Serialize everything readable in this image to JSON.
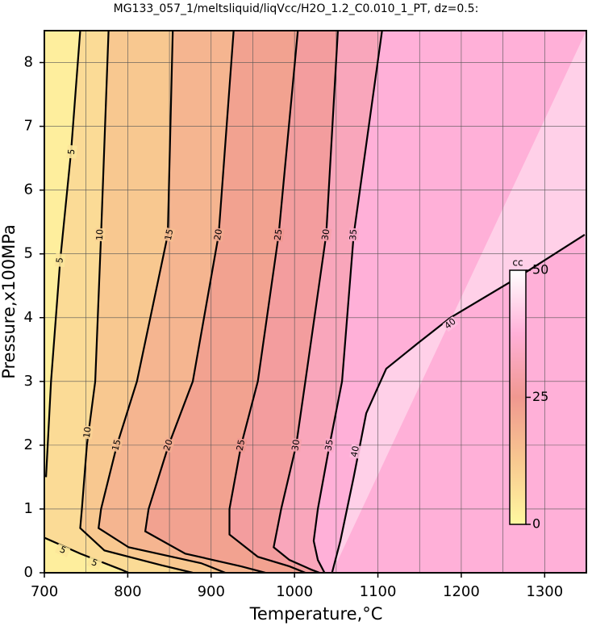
{
  "chart_data": {
    "type": "contour",
    "title": "MG133_057_1/meltsliquid/liqVcc/H2O_1.2_C0.010_1_PT, dz=0.5:",
    "xlabel": "Temperature,°C",
    "ylabel": "Pressure,x100MPa",
    "xlim": [
      700,
      1350
    ],
    "ylim": [
      0,
      8.5
    ],
    "xticks": [
      700,
      800,
      900,
      1000,
      1100,
      1200,
      1300
    ],
    "xminor": [
      750,
      850,
      950,
      1050,
      1150,
      1250,
      1350
    ],
    "yticks": [
      0,
      1,
      2,
      3,
      4,
      5,
      6,
      7,
      8
    ],
    "grid": true,
    "line_color": "#000000",
    "contours": [
      {
        "level": 5,
        "x": [
          743,
          732,
          719,
          708,
          702,
          null,
          700,
          743,
          792,
          801
        ],
        "y": [
          8.5,
          6.6,
          4.9,
          3,
          1.5,
          null,
          0.55,
          0.3,
          0.05,
          0
        ],
        "label_x": [
          733,
          719,
          722,
          760
        ],
        "label_y": [
          6.6,
          4.9,
          0.35,
          0.15
        ]
      },
      {
        "level": 10,
        "x": [
          777,
          768,
          761,
          751,
          745,
          743,
          772,
          840,
          878
        ],
        "y": [
          8.5,
          5.3,
          3,
          2,
          1,
          0.7,
          0.35,
          0.12,
          0
        ],
        "label_x": [
          767,
          752
        ],
        "label_y": [
          5.3,
          2.2
        ]
      },
      {
        "level": 15,
        "x": [
          854,
          848,
          811,
          787,
          768,
          765,
          801,
          888,
          917
        ],
        "y": [
          8.5,
          5.3,
          3,
          2,
          1,
          0.7,
          0.4,
          0.15,
          0
        ],
        "label_x": [
          850,
          787
        ],
        "label_y": [
          5.3,
          2.0
        ]
      },
      {
        "level": 20,
        "x": [
          927,
          909,
          878,
          849,
          825,
          821,
          869,
          936,
          965
        ],
        "y": [
          8.5,
          5.3,
          3,
          2,
          1,
          0.65,
          0.3,
          0.1,
          0
        ],
        "label_x": [
          909,
          849
        ],
        "label_y": [
          5.3,
          2.0
        ]
      },
      {
        "level": 25,
        "x": [
          1004,
          981,
          956,
          936,
          922,
          922,
          956,
          994,
          1013
        ],
        "y": [
          8.5,
          5.3,
          3,
          2,
          1,
          0.6,
          0.25,
          0.1,
          0
        ],
        "label_x": [
          981,
          936
        ],
        "label_y": [
          5.3,
          2.0
        ]
      },
      {
        "level": 30,
        "x": [
          1052,
          1038,
          1013,
          1002,
          984,
          975,
          994,
          1020,
          1030
        ],
        "y": [
          8.5,
          5.3,
          3,
          2,
          1,
          0.4,
          0.2,
          0.05,
          0
        ],
        "label_x": [
          1038,
          1002
        ],
        "label_y": [
          5.3,
          2.0
        ]
      },
      {
        "level": 35,
        "x": [
          1105,
          1071,
          1057,
          1042,
          1028,
          1023,
          1028,
          1036
        ],
        "y": [
          8.5,
          5.3,
          3,
          2,
          1,
          0.5,
          0.2,
          0
        ],
        "label_x": [
          1071,
          1042
        ],
        "label_y": [
          5.3,
          2.0
        ]
      },
      {
        "level": 40,
        "x": [
          1045,
          1055,
          1071,
          1086,
          1110,
          1148,
          1187,
          1264,
          1348
        ],
        "y": [
          0,
          0.5,
          1.5,
          2.5,
          3.2,
          3.6,
          4.0,
          4.6,
          5.3
        ],
        "label_x": [
          1187,
          1073
        ],
        "label_y": [
          3.9,
          1.9
        ]
      }
    ],
    "colorbar": {
      "label": "cc",
      "lim": [
        0,
        50
      ],
      "ticks": [
        0,
        25,
        50
      ],
      "stops": [
        0,
        12.5,
        25,
        37.5,
        50
      ],
      "colors": [
        "#fff8a0",
        "#f8c890",
        "#f09890",
        "#ffb0d8",
        "#ffffff"
      ]
    }
  }
}
